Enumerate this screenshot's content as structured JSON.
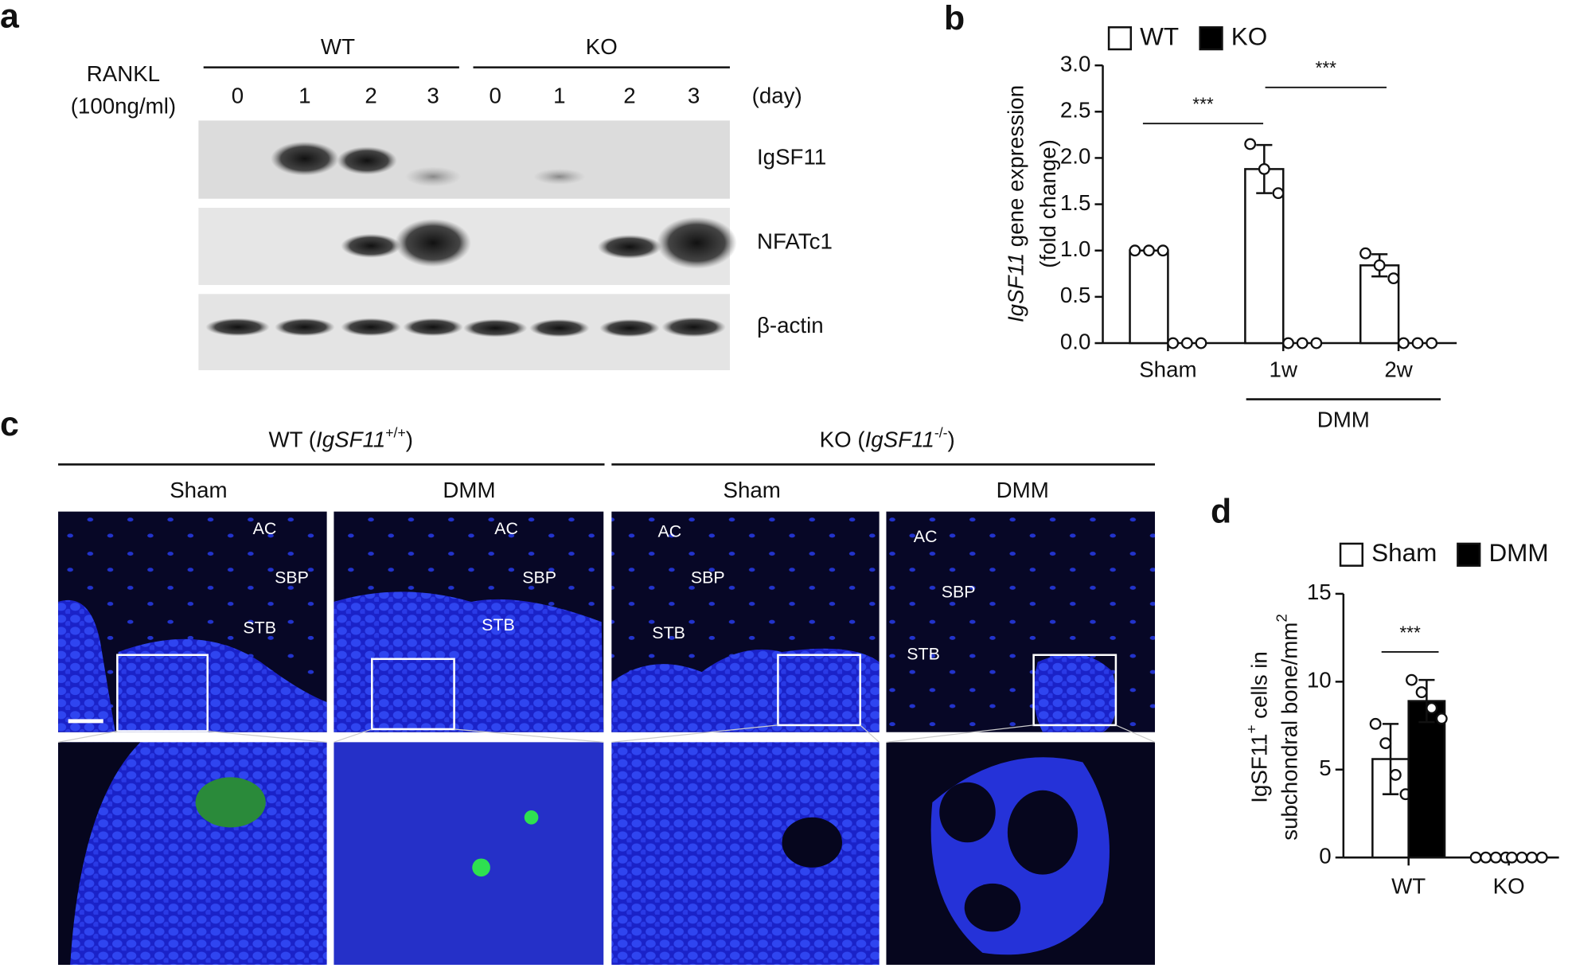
{
  "figure": {
    "panel_a": {
      "label": "a",
      "treatment": "RANKL",
      "dose": "(100ng/ml)",
      "groups": [
        "WT",
        "KO"
      ],
      "days": [
        "0",
        "1",
        "2",
        "3",
        "0",
        "1",
        "2",
        "3"
      ],
      "day_unit": "(day)",
      "proteins": [
        "IgSF11",
        "NFATc1",
        "β-actin"
      ]
    },
    "panel_c": {
      "label": "c",
      "groups": [
        {
          "prefix": "WT (",
          "gene": "IgSF11",
          "genotype": "+/+",
          "suffix": ")"
        },
        {
          "prefix": "KO (",
          "gene": "IgSF11",
          "genotype": "-/-",
          "suffix": ")"
        }
      ],
      "conditions": [
        "Sham",
        "DMM",
        "Sham",
        "DMM"
      ],
      "regions": [
        [
          "AC",
          "SBP",
          "STB"
        ],
        [
          "AC",
          "SBP",
          "STB"
        ],
        [
          "AC",
          "SBP",
          "STB"
        ],
        [
          "AC",
          "SBP",
          "STB"
        ]
      ]
    }
  },
  "chart_data": [
    {
      "type": "bar",
      "panel_label": "b",
      "y_label": [
        [
          {
            "text": "IgSF11",
            "italic": true
          },
          {
            "text": "gene expression"
          }
        ],
        [
          {
            "text": "(fold change)"
          }
        ]
      ],
      "categories": [
        "Sham",
        "1w",
        "2w"
      ],
      "series": [
        {
          "name": "WT",
          "color": "#ffffff",
          "values": [
            1.0,
            1.88,
            0.84
          ],
          "errors": [
            0,
            0.26,
            0.12
          ],
          "points": [
            [
              1,
              1,
              1
            ],
            [
              2.15,
              1.88,
              1.62
            ],
            [
              0.97,
              0.84,
              0.7
            ]
          ]
        },
        {
          "name": "KO",
          "color": "#000000",
          "values": [
            0,
            0,
            0
          ],
          "points": [
            [
              0,
              0,
              0
            ],
            [
              0,
              0,
              0
            ],
            [
              0,
              0,
              0
            ]
          ]
        }
      ],
      "ylim": [
        0,
        3
      ],
      "yticks": [
        {
          "value": 0,
          "label": "0.0"
        },
        {
          "value": 0.5,
          "label": "0.5"
        },
        {
          "value": 1,
          "label": "1.0"
        },
        {
          "value": 1.5,
          "label": "1.5"
        },
        {
          "value": 2,
          "label": "2.0"
        },
        {
          "value": 2.5,
          "label": "2.5"
        },
        {
          "value": 3,
          "label": "3.0"
        }
      ],
      "annotations": [
        "***",
        "***"
      ],
      "group_label": "DMM"
    },
    {
      "type": "bar",
      "panel_label": "d",
      "y_label": [
        [
          {
            "text": "IgSF11"
          },
          {
            "text": "+",
            "sup": true
          },
          {
            "text": "cells in"
          }
        ],
        [
          {
            "text": "subchondral bone/mm"
          },
          {
            "text": "2",
            "sup": true
          }
        ]
      ],
      "categories": [
        "WT",
        "KO"
      ],
      "series": [
        {
          "name": "Sham",
          "color": "#ffffff",
          "values": [
            5.6,
            0
          ],
          "errors": [
            2.0,
            0
          ],
          "points": [
            [
              7.6,
              6.5,
              4.7,
              3.6
            ],
            [
              0,
              0,
              0,
              0
            ]
          ]
        },
        {
          "name": "DMM",
          "color": "#000000",
          "values": [
            8.9,
            0
          ],
          "errors": [
            1.2,
            0
          ],
          "points": [
            [
              10.1,
              9.4,
              8.5,
              7.9
            ],
            [
              0,
              0,
              0,
              0
            ]
          ]
        }
      ],
      "ylim": [
        0,
        15
      ],
      "yticks": [
        0,
        5,
        10,
        15
      ],
      "annotations": [
        "***"
      ]
    }
  ]
}
